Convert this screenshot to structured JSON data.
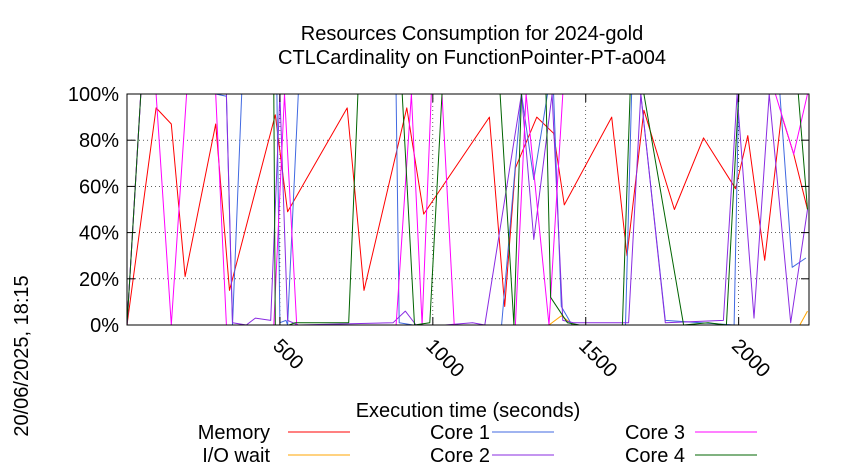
{
  "chart_data": {
    "type": "line",
    "title": "Resources Consumption for 2024-gold",
    "subtitle": "CTLCardinality on FunctionPointer-PT-a004",
    "xlabel": "Execution time (seconds)",
    "ylabel": "",
    "xlim": [
      0,
      2230
    ],
    "ylim": [
      0,
      100
    ],
    "x_ticks": [
      "500",
      "1000",
      "1500",
      "2000"
    ],
    "x_tick_values": [
      500,
      1000,
      1500,
      2000
    ],
    "y_ticks": [
      "0%",
      "20%",
      "40%",
      "60%",
      "80%",
      "100%"
    ],
    "y_tick_values": [
      0,
      20,
      40,
      60,
      80,
      100
    ],
    "grid": true,
    "legend_placement": "bottom",
    "timestamp": "20/06/2025, 18:15",
    "series": [
      {
        "name": "Memory",
        "color": "#ff0000",
        "points": [
          [
            0,
            0
          ],
          [
            95,
            94
          ],
          [
            145,
            87
          ],
          [
            190,
            21
          ],
          [
            290,
            87
          ],
          [
            335,
            15
          ],
          [
            485,
            91
          ],
          [
            525,
            49
          ],
          [
            720,
            94
          ],
          [
            775,
            15
          ],
          [
            915,
            94
          ],
          [
            970,
            48
          ],
          [
            1185,
            90
          ],
          [
            1235,
            8
          ],
          [
            1270,
            68
          ],
          [
            1340,
            90
          ],
          [
            1395,
            83
          ],
          [
            1430,
            52
          ],
          [
            1585,
            90
          ],
          [
            1635,
            30
          ],
          [
            1690,
            93
          ],
          [
            1790,
            50
          ],
          [
            1885,
            81
          ],
          [
            1990,
            59
          ],
          [
            2030,
            82
          ],
          [
            2085,
            28
          ],
          [
            2140,
            91
          ],
          [
            2180,
            74
          ],
          [
            2225,
            50
          ]
        ]
      },
      {
        "name": "I/O wait",
        "color": "#ffa500",
        "points": [
          [
            0,
            0
          ],
          [
            1380,
            0
          ],
          [
            1420,
            4
          ],
          [
            1460,
            0
          ],
          [
            1990,
            0
          ],
          [
            2030,
            0
          ],
          [
            2200,
            0
          ],
          [
            2225,
            6
          ]
        ]
      },
      {
        "name": "Core 1",
        "color": "#4169e1",
        "points": [
          [
            0,
            0
          ],
          [
            45,
            100
          ],
          [
            290,
            100
          ],
          [
            325,
            99
          ],
          [
            345,
            0
          ],
          [
            375,
            100
          ],
          [
            480,
            100
          ],
          [
            490,
            100
          ],
          [
            500,
            1
          ],
          [
            520,
            2
          ],
          [
            525,
            0
          ],
          [
            560,
            100
          ],
          [
            880,
            100
          ],
          [
            890,
            1
          ],
          [
            935,
            0
          ],
          [
            1225,
            0
          ],
          [
            1290,
            100
          ],
          [
            1330,
            63
          ],
          [
            1375,
            100
          ],
          [
            1395,
            100
          ],
          [
            1420,
            8
          ],
          [
            1455,
            0
          ],
          [
            1630,
            0
          ],
          [
            1650,
            100
          ],
          [
            1680,
            100
          ],
          [
            1760,
            2
          ],
          [
            1985,
            0
          ],
          [
            2000,
            100
          ],
          [
            2090,
            100
          ],
          [
            2135,
            100
          ],
          [
            2175,
            25
          ],
          [
            2220,
            29
          ]
        ]
      },
      {
        "name": "Core 2",
        "color": "#8a2be2",
        "points": [
          [
            0,
            0
          ],
          [
            45,
            100
          ],
          [
            280,
            100
          ],
          [
            325,
            100
          ],
          [
            345,
            1
          ],
          [
            390,
            0
          ],
          [
            420,
            3
          ],
          [
            470,
            2
          ],
          [
            500,
            100
          ],
          [
            525,
            2
          ],
          [
            560,
            0
          ],
          [
            870,
            1
          ],
          [
            910,
            6
          ],
          [
            945,
            0
          ],
          [
            1040,
            0
          ],
          [
            1130,
            1
          ],
          [
            1170,
            0
          ],
          [
            1290,
            100
          ],
          [
            1330,
            37
          ],
          [
            1390,
            100
          ],
          [
            1425,
            2
          ],
          [
            1460,
            1
          ],
          [
            1640,
            1
          ],
          [
            1680,
            100
          ],
          [
            1760,
            1
          ],
          [
            1950,
            2
          ],
          [
            1995,
            100
          ],
          [
            2050,
            3
          ],
          [
            2100,
            100
          ],
          [
            2170,
            1
          ],
          [
            2225,
            50
          ]
        ]
      },
      {
        "name": "Core 3",
        "color": "#ff00ff",
        "points": [
          [
            0,
            0
          ],
          [
            45,
            100
          ],
          [
            95,
            100
          ],
          [
            145,
            0
          ],
          [
            195,
            100
          ],
          [
            290,
            100
          ],
          [
            325,
            0
          ],
          [
            345,
            0
          ],
          [
            480,
            0
          ],
          [
            515,
            100
          ],
          [
            555,
            0
          ],
          [
            880,
            0
          ],
          [
            930,
            100
          ],
          [
            965,
            0
          ],
          [
            995,
            100
          ],
          [
            1030,
            100
          ],
          [
            1070,
            0
          ],
          [
            1270,
            0
          ],
          [
            1305,
            100
          ],
          [
            1380,
            0
          ],
          [
            1425,
            100
          ],
          [
            1990,
            100
          ],
          [
            2020,
            100
          ],
          [
            2040,
            100
          ],
          [
            2080,
            100
          ],
          [
            2120,
            100
          ],
          [
            2180,
            74
          ],
          [
            2225,
            100
          ]
        ]
      },
      {
        "name": "Core 4",
        "color": "#006400",
        "points": [
          [
            0,
            0
          ],
          [
            45,
            100
          ],
          [
            480,
            100
          ],
          [
            485,
            0
          ],
          [
            530,
            0
          ],
          [
            550,
            1
          ],
          [
            725,
            1
          ],
          [
            755,
            100
          ],
          [
            900,
            100
          ],
          [
            940,
            0
          ],
          [
            990,
            1
          ],
          [
            1030,
            100
          ],
          [
            1220,
            100
          ],
          [
            1265,
            0
          ],
          [
            1290,
            100
          ],
          [
            1370,
            100
          ],
          [
            1385,
            12
          ],
          [
            1440,
            1
          ],
          [
            1480,
            0
          ],
          [
            1620,
            0
          ],
          [
            1645,
            100
          ],
          [
            1690,
            100
          ],
          [
            1820,
            0
          ],
          [
            1900,
            1
          ],
          [
            1960,
            0
          ],
          [
            2000,
            100
          ],
          [
            2100,
            100
          ],
          [
            2140,
            100
          ],
          [
            2195,
            100
          ],
          [
            2225,
            50
          ]
        ]
      }
    ]
  }
}
